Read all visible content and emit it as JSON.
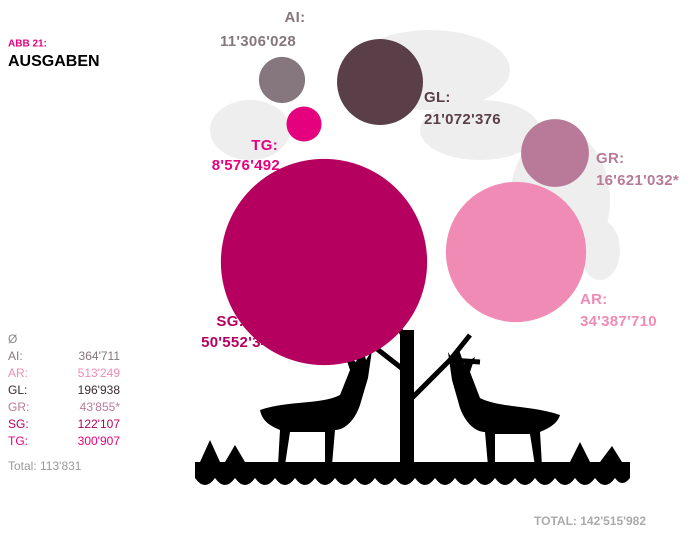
{
  "header": {
    "label": "ABB 21:",
    "title": "AUSGABEN"
  },
  "chart_data": {
    "type": "bubble",
    "categories": [
      "AI:",
      "GL:",
      "TG:",
      "SG:",
      "AR:",
      "GR:"
    ],
    "values": [
      11306028,
      21072376,
      8576492,
      50552344,
      34387710,
      16621032
    ],
    "value_labels": [
      "11'306'028",
      "21'072'376",
      "8'576'492",
      "50'552'344",
      "34'387'710",
      "16'621'032*"
    ],
    "colors": [
      "#85777d",
      "#5a3f48",
      "#e5007e",
      "#b5005f",
      "#f08bb5",
      "#b87a98"
    ],
    "total": "TOTAL: 142'515'982"
  },
  "averages": {
    "title": "Ø",
    "rows": [
      {
        "name": "AI:",
        "value": "364'711",
        "color": "#85777d"
      },
      {
        "name": "AR:",
        "value": "513'249",
        "color": "#f08bb5"
      },
      {
        "name": "GL:",
        "value": "196'938",
        "color": "#3a2a30"
      },
      {
        "name": "GR:",
        "value": "43'855*",
        "color": "#b87a98"
      },
      {
        "name": "SG:",
        "value": "122'107",
        "color": "#b5005f"
      },
      {
        "name": "TG:",
        "value": "300'907",
        "color": "#e5007e"
      }
    ],
    "total": "Total: 113'831"
  }
}
